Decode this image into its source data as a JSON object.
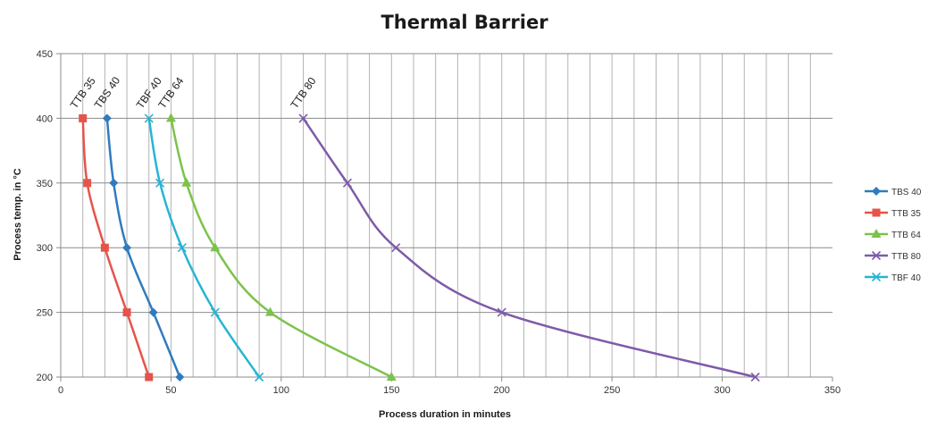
{
  "chart_data": {
    "type": "line",
    "title": "Thermal Barrier",
    "xlabel": "Process duration in minutes",
    "ylabel": "Process temp. in °C",
    "xlim": [
      0,
      350
    ],
    "ylim": [
      200,
      450
    ],
    "x_ticks": [
      "0",
      "50",
      "100",
      "150",
      "200",
      "250",
      "300",
      "350"
    ],
    "y_ticks": [
      "200",
      "250",
      "300",
      "350",
      "400",
      "450"
    ],
    "grid": true,
    "legend_position": "right",
    "series": [
      {
        "name": "TBS 40",
        "color": "#2f7bbf",
        "marker": "diamond",
        "annotation": "TBS 40",
        "x": [
          21,
          24,
          30,
          42,
          54
        ],
        "y": [
          400,
          350,
          300,
          250,
          200
        ]
      },
      {
        "name": "TTB 35",
        "color": "#e5544a",
        "marker": "square",
        "annotation": "TTB 35",
        "x": [
          10,
          12,
          20,
          30,
          40
        ],
        "y": [
          400,
          350,
          300,
          250,
          200
        ]
      },
      {
        "name": "TTB 64",
        "color": "#7dc24a",
        "marker": "triangle",
        "annotation": "TTB 64",
        "x": [
          50,
          57,
          70,
          95,
          150
        ],
        "y": [
          400,
          350,
          300,
          250,
          200
        ]
      },
      {
        "name": "TTB 80",
        "color": "#7d5ba8",
        "marker": "x",
        "annotation": "TTB 80",
        "x": [
          110,
          130,
          152,
          200,
          315
        ],
        "y": [
          400,
          350,
          300,
          250,
          200
        ]
      },
      {
        "name": "TBF 40",
        "color": "#28b4d4",
        "marker": "x",
        "annotation": "TBF 40",
        "x": [
          40,
          45,
          55,
          70,
          90
        ],
        "y": [
          400,
          350,
          300,
          250,
          200
        ]
      }
    ]
  }
}
